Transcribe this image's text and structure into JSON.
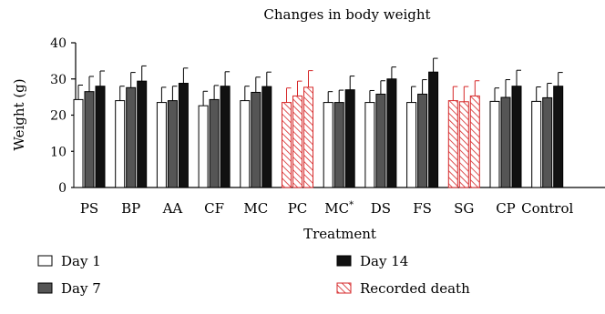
{
  "chart_data": {
    "type": "bar",
    "title": "Changes in body weight",
    "xlabel": "Treatment",
    "ylabel": "Weight (g)",
    "ylim": [
      0,
      40
    ],
    "yticks": [
      0,
      10,
      20,
      30,
      40
    ],
    "grid": false,
    "legend_position": "bottom",
    "categories": [
      "PS",
      "BP",
      "AA",
      "CF",
      "MC",
      "PC",
      "MC",
      "DS",
      "FS",
      "SG",
      "CP",
      "Control"
    ],
    "category_superscripts": [
      "",
      "",
      "",
      "",
      "",
      "",
      "*",
      "",
      "",
      "",
      "",
      ""
    ],
    "series": [
      {
        "name": "Day 1",
        "values": [
          24.3,
          24.0,
          23.5,
          22.6,
          24.0,
          23.5,
          23.5,
          23.5,
          23.5,
          24.0,
          23.8,
          23.8
        ],
        "errors": [
          4.0,
          4.0,
          4.2,
          4.0,
          4.0,
          4.0,
          3.0,
          3.3,
          4.4,
          3.9,
          3.7,
          4.0
        ]
      },
      {
        "name": "Day 7",
        "values": [
          26.5,
          27.6,
          24.0,
          24.3,
          26.3,
          25.3,
          23.5,
          25.8,
          25.8,
          23.7,
          24.9,
          24.8
        ],
        "errors": [
          4.2,
          4.2,
          4.0,
          3.9,
          4.2,
          4.1,
          3.4,
          3.7,
          4.0,
          4.2,
          4.9,
          4.0
        ]
      },
      {
        "name": "Day 14",
        "values": [
          28.0,
          29.4,
          28.8,
          28.0,
          27.9,
          27.7,
          27.0,
          30.0,
          31.9,
          25.3,
          28.0,
          28.0
        ],
        "errors": [
          4.2,
          4.2,
          4.2,
          4.0,
          4.0,
          4.6,
          3.8,
          3.3,
          3.8,
          4.2,
          4.4,
          3.8
        ]
      }
    ],
    "recorded_death_categories": [
      5,
      9
    ],
    "legend": [
      {
        "label": "Day 1",
        "style": "white"
      },
      {
        "label": "Day 7",
        "style": "gray"
      },
      {
        "label": "Day 14",
        "style": "black"
      },
      {
        "label": "Recorded death",
        "style": "red-hatch"
      }
    ],
    "colors": {
      "day1": "#ffffff",
      "day7": "#555555",
      "day14": "#111111",
      "death": "#d62728"
    }
  }
}
